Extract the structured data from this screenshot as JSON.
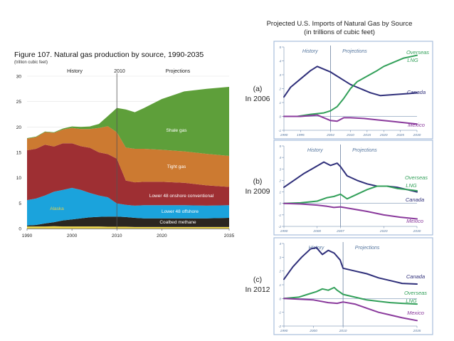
{
  "left_chart": {
    "title": "Figure 107. Natural gas production by source, 1990-2035",
    "unit_note": "(trillion cubic feet)",
    "section_history": "History",
    "section_divider_year": "2010",
    "section_projections": "Projections"
  },
  "right_panel": {
    "title_line1": "Projected U.S. Imports of Natural Gas by Source",
    "title_line2": "(in trillions of cubic feet)"
  },
  "colors": {
    "shale": "#5e9f3a",
    "tight": "#cc7a31",
    "onshore": "#9e2f33",
    "offshore": "#1ba3dc",
    "coalbed": "#2b2620",
    "alaska": "#e8d24a",
    "panel_border": "#a8bfdc",
    "canada": "#2f2f7a",
    "lng": "#33a05a",
    "mexico": "#8a3a9c",
    "panel_text": "#5878a0"
  },
  "chart_data": [
    {
      "type": "area",
      "title": "Figure 107. Natural gas production by source, 1990-2035",
      "ylabel": "(trillion cubic feet)",
      "xlim": [
        1990,
        2035
      ],
      "ylim": [
        0,
        30
      ],
      "x_ticks": [
        "1990",
        "2000",
        "2010",
        "2020",
        "2035"
      ],
      "y_ticks": [
        "0",
        "5",
        "10",
        "15",
        "20",
        "25",
        "30"
      ],
      "x": [
        1990,
        1992,
        1994,
        1996,
        1998,
        2000,
        2002,
        2004,
        2006,
        2008,
        2010,
        2012,
        2014,
        2016,
        2020,
        2025,
        2030,
        2035
      ],
      "series": [
        {
          "name": "Alaska",
          "values": [
            0.4,
            0.4,
            0.4,
            0.45,
            0.4,
            0.4,
            0.4,
            0.4,
            0.4,
            0.35,
            0.35,
            0.35,
            0.3,
            0.3,
            0.3,
            0.3,
            0.3,
            0.3
          ]
        },
        {
          "name": "Coalbed methane",
          "values": [
            0.2,
            0.3,
            0.6,
            0.8,
            1.2,
            1.4,
            1.6,
            1.8,
            1.9,
            2.0,
            2.0,
            1.9,
            1.8,
            1.7,
            1.7,
            1.7,
            1.7,
            1.8
          ]
        },
        {
          "name": "Lower 48 offshore",
          "values": [
            5.0,
            5.2,
            5.5,
            6.0,
            6.0,
            6.2,
            5.6,
            4.8,
            4.2,
            3.8,
            2.6,
            2.4,
            2.4,
            2.6,
            2.6,
            2.6,
            2.5,
            2.5
          ]
        },
        {
          "name": "Lower 48 onshore conventional",
          "values": [
            9.8,
            9.8,
            10.0,
            8.9,
            9.2,
            8.8,
            8.6,
            8.9,
            8.5,
            8.5,
            8.8,
            4.8,
            4.6,
            4.6,
            4.6,
            4.4,
            4.0,
            3.6
          ]
        },
        {
          "name": "Tight gas",
          "values": [
            2.3,
            2.3,
            2.5,
            2.7,
            2.7,
            3.0,
            3.4,
            3.7,
            4.8,
            5.5,
            5.2,
            6.5,
            6.6,
            6.5,
            6.3,
            6.2,
            6.2,
            6.1
          ]
        },
        {
          "name": "Shale gas",
          "values": [
            0.1,
            0.1,
            0.1,
            0.1,
            0.2,
            0.3,
            0.4,
            0.5,
            0.8,
            2.0,
            4.8,
            7.5,
            7.2,
            8.0,
            10.0,
            11.8,
            12.8,
            13.6
          ]
        }
      ],
      "annotations": [
        "History",
        "2010",
        "Projections"
      ]
    },
    {
      "type": "line",
      "title": "Projected U.S. Imports of Natural Gas by Source",
      "subtitle": "(in trillions of cubic feet)",
      "panel_label": "(a)",
      "panel_sub": "In 2006",
      "xlim": [
        1990,
        2030
      ],
      "ylim": [
        -1,
        5
      ],
      "x_ticks": [
        "1990",
        "1995",
        "2004",
        "2010",
        "2015",
        "2020",
        "2025",
        "2030"
      ],
      "y_ticks": [
        "5",
        "4",
        "3",
        "2",
        "1",
        "0",
        "-1"
      ],
      "divider_label_left": "History",
      "divider_label_right": "Projections",
      "divider_x": 2004,
      "series": [
        {
          "name": "Canada",
          "x": [
            1990,
            1992,
            1995,
            1998,
            2000,
            2002,
            2004,
            2006,
            2008,
            2010,
            2013,
            2016,
            2019,
            2022,
            2025,
            2028,
            2030
          ],
          "values": [
            1.4,
            2.1,
            2.7,
            3.3,
            3.6,
            3.4,
            3.2,
            2.9,
            2.6,
            2.3,
            2.0,
            1.7,
            1.5,
            1.55,
            1.6,
            1.65,
            1.7
          ]
        },
        {
          "name": "Overseas LNG",
          "x": [
            1990,
            1994,
            1998,
            2002,
            2004,
            2006,
            2008,
            2010,
            2012,
            2015,
            2018,
            2020,
            2023,
            2026,
            2028,
            2030
          ],
          "values": [
            0.0,
            0.0,
            0.15,
            0.25,
            0.4,
            0.7,
            1.3,
            2.0,
            2.5,
            2.9,
            3.3,
            3.6,
            3.9,
            4.2,
            4.3,
            4.4
          ]
        },
        {
          "name": "Mexico",
          "x": [
            1990,
            1995,
            2000,
            2002,
            2004,
            2006,
            2008,
            2010,
            2014,
            2018,
            2022,
            2026,
            2030
          ],
          "values": [
            0.0,
            0.0,
            0.1,
            -0.1,
            -0.3,
            -0.35,
            -0.1,
            -0.1,
            -0.15,
            -0.25,
            -0.35,
            -0.45,
            -0.55
          ]
        }
      ]
    },
    {
      "type": "line",
      "panel_label": "(b)",
      "panel_sub": "In 2009",
      "xlim": [
        1990,
        2030
      ],
      "ylim": [
        -2,
        5
      ],
      "x_ticks": [
        "1990",
        "2000",
        "2007",
        "2020",
        "2030"
      ],
      "y_ticks": [
        "5",
        "4",
        "3",
        "2",
        "1",
        "0",
        "-1",
        "-2"
      ],
      "divider_label_left": "History",
      "divider_label_right": "Projections",
      "divider_x": 2007,
      "series": [
        {
          "name": "Canada",
          "x": [
            1990,
            1993,
            1996,
            1999,
            2002,
            2004,
            2006,
            2007,
            2009,
            2012,
            2015,
            2018,
            2021,
            2024,
            2027,
            2030
          ],
          "values": [
            1.4,
            2.0,
            2.6,
            3.1,
            3.6,
            3.3,
            3.5,
            3.2,
            2.4,
            2.0,
            1.7,
            1.5,
            1.5,
            1.4,
            1.2,
            1.0
          ]
        },
        {
          "name": "Overseas LNG",
          "x": [
            1990,
            1995,
            2000,
            2003,
            2005,
            2007,
            2009,
            2012,
            2015,
            2018,
            2021,
            2024,
            2027,
            2030
          ],
          "values": [
            0.0,
            0.05,
            0.2,
            0.5,
            0.6,
            0.8,
            0.4,
            0.8,
            1.2,
            1.5,
            1.5,
            1.3,
            1.2,
            1.1
          ]
        },
        {
          "name": "Mexico",
          "x": [
            1990,
            1995,
            2000,
            2003,
            2005,
            2007,
            2010,
            2015,
            2020,
            2025,
            2030
          ],
          "values": [
            0.0,
            -0.05,
            -0.15,
            -0.25,
            -0.35,
            -0.3,
            -0.45,
            -0.7,
            -1.0,
            -1.2,
            -1.35
          ]
        }
      ]
    },
    {
      "type": "line",
      "panel_label": "(c)",
      "panel_sub": "In 2012",
      "xlim": [
        1990,
        2035
      ],
      "ylim": [
        -2,
        4
      ],
      "x_ticks": [
        "1990",
        "2000",
        "2010",
        "2035"
      ],
      "y_ticks": [
        "4",
        "3",
        "2",
        "1",
        "0",
        "-1",
        "-2"
      ],
      "divider_label_left": "History",
      "divider_label_right": "Projections",
      "divider_x": 2010,
      "series": [
        {
          "name": "Canada",
          "x": [
            1990,
            1993,
            1996,
            1999,
            2001,
            2003,
            2005,
            2007,
            2009,
            2010,
            2014,
            2018,
            2022,
            2026,
            2030,
            2035
          ],
          "values": [
            1.4,
            2.3,
            3.0,
            3.6,
            3.7,
            3.2,
            3.5,
            3.3,
            2.8,
            2.2,
            2.0,
            1.8,
            1.5,
            1.3,
            1.1,
            1.05
          ]
        },
        {
          "name": "Overseas LNG",
          "x": [
            1990,
            1995,
            1998,
            2001,
            2003,
            2005,
            2007,
            2008,
            2010,
            2014,
            2018,
            2022,
            2026,
            2030,
            2035
          ],
          "values": [
            0.0,
            0.1,
            0.3,
            0.5,
            0.7,
            0.6,
            0.8,
            0.6,
            0.3,
            0.1,
            -0.1,
            -0.2,
            -0.3,
            -0.35,
            -0.4
          ]
        },
        {
          "name": "Mexico",
          "x": [
            1990,
            1995,
            2000,
            2005,
            2008,
            2010,
            2014,
            2018,
            2022,
            2026,
            2030,
            2035
          ],
          "values": [
            0.0,
            -0.05,
            -0.1,
            -0.3,
            -0.35,
            -0.25,
            -0.4,
            -0.7,
            -1.0,
            -1.2,
            -1.4,
            -1.6
          ]
        }
      ]
    }
  ],
  "left_labels": {
    "shale": "Shale gas",
    "tight": "Tight gas",
    "onshore": "Lower 48 onshore conventional",
    "offshore": "Lower 48 offshore",
    "coalbed": "Coalbed methane",
    "alaska": "Alaska"
  },
  "panel_a_labels": {
    "lng_line1": "Overseas",
    "lng_line2": "LNG",
    "canada": "Canada",
    "mexico": "Mexico"
  },
  "panel_b_labels": {
    "lng_line1": "Overseas",
    "lng_line2": "LNG",
    "canada": "Canada",
    "mexico": "Mexico"
  },
  "panel_c_labels": {
    "lng_line1": "Overseas",
    "lng_line2": "LNG",
    "canada": "Canada",
    "mexico": "Mexico"
  }
}
